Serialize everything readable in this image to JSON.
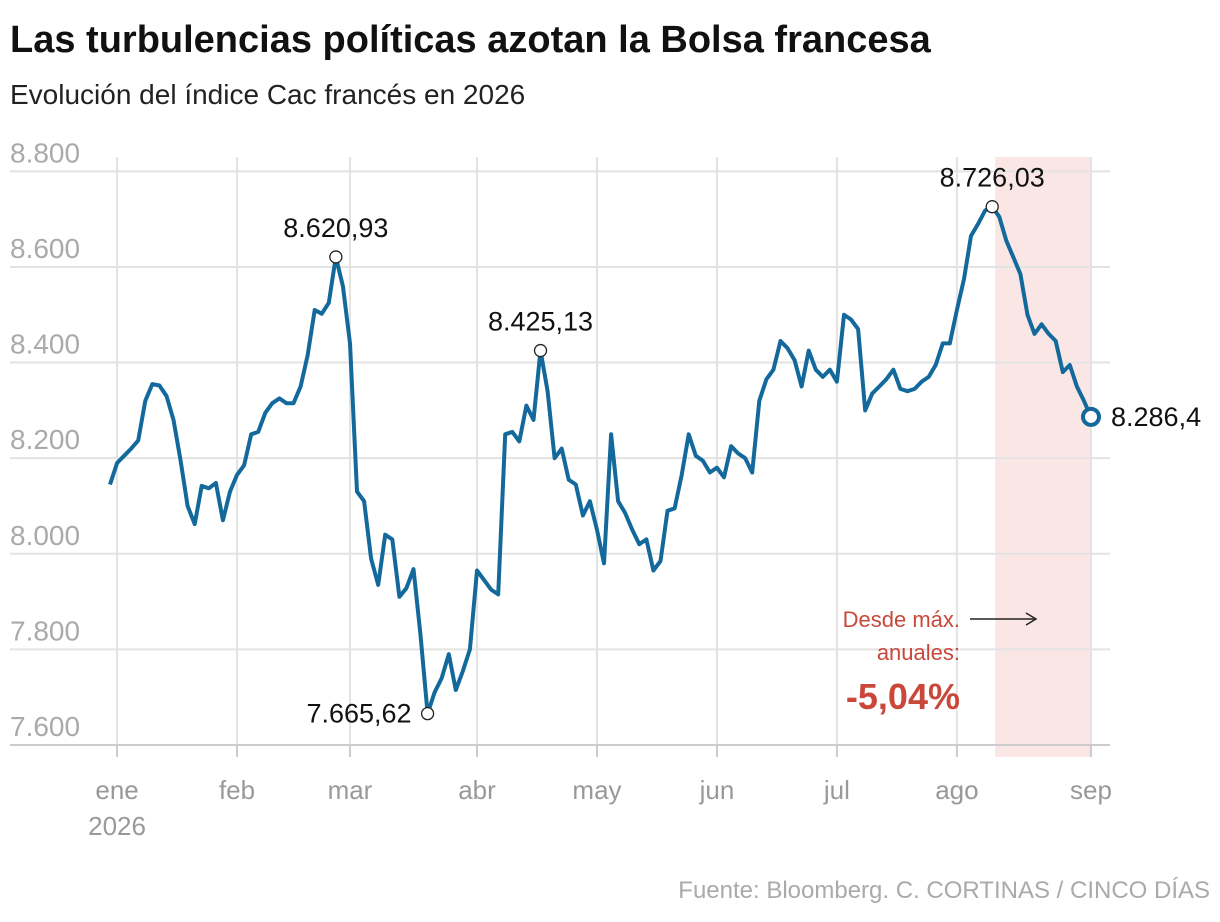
{
  "chart_data": {
    "type": "line",
    "title": "Las turbulencias políticas azotan la Bolsa francesa",
    "subtitle": "Evolución del índice Cac francés en 2026",
    "source": "Fuente: Bloomberg. C. CORTINAS / CINCO DÍAS",
    "year_label": "2026",
    "note": [
      "Desde máx.",
      "anuales:"
    ],
    "note_value": "-5,04%",
    "color": "#13699c",
    "shade_color": "#fae7e5",
    "grid": true,
    "ylim": [
      7600,
      8830
    ],
    "yticks": [
      {
        "value": 7600,
        "label": "7.600"
      },
      {
        "value": 7800,
        "label": "7.800"
      },
      {
        "value": 8000,
        "label": "8.000"
      },
      {
        "value": 8200,
        "label": "8.200"
      },
      {
        "value": 8400,
        "label": "8.400"
      },
      {
        "value": 8600,
        "label": "8.600"
      },
      {
        "value": 8800,
        "label": "8.800"
      }
    ],
    "categories": [
      null,
      "ene",
      null,
      null,
      null,
      null,
      null,
      null,
      null,
      null,
      null,
      null,
      null,
      null,
      null,
      null,
      null,
      null,
      "feb",
      null,
      null,
      null,
      null,
      null,
      null,
      null,
      null,
      null,
      null,
      null,
      null,
      null,
      null,
      null,
      "mar",
      null,
      null,
      null,
      null,
      null,
      null,
      null,
      null,
      null,
      null,
      null,
      null,
      null,
      null,
      null,
      null,
      null,
      "abr",
      null,
      null,
      null,
      null,
      null,
      null,
      null,
      null,
      null,
      null,
      null,
      null,
      null,
      null,
      null,
      null,
      "may",
      null,
      null,
      null,
      null,
      null,
      null,
      null,
      null,
      null,
      null,
      null,
      null,
      null,
      null,
      null,
      null,
      "jun",
      null,
      null,
      null,
      null,
      null,
      null,
      null,
      null,
      null,
      null,
      null,
      null,
      null,
      null,
      null,
      null,
      "jul",
      null,
      null,
      null,
      null,
      null,
      null,
      null,
      null,
      null,
      null,
      null,
      null,
      null,
      null,
      null,
      null,
      "ago",
      null,
      null,
      null,
      null,
      null,
      null,
      null,
      null,
      null,
      null,
      null,
      null,
      null,
      null,
      null,
      null,
      null,
      null,
      "sep"
    ],
    "values": [
      8145,
      8190,
      8205,
      8220,
      8237,
      8320,
      8355,
      8352,
      8330,
      8280,
      8195,
      8100,
      8062,
      8142,
      8137,
      8148,
      8070,
      8130,
      8165,
      8185,
      8250,
      8255,
      8295,
      8315,
      8325,
      8315,
      8315,
      8350,
      8415,
      8510,
      8502,
      8525,
      8620.93,
      8560,
      8440,
      8130,
      8110,
      7990,
      7935,
      8040,
      8030,
      7910,
      7928,
      7968,
      7830,
      7665.62,
      7710,
      7740,
      7790,
      7715,
      7755,
      7800,
      7965,
      7945,
      7925,
      7915,
      8250,
      8255,
      8235,
      8310,
      8280,
      8425.13,
      8340,
      8200,
      8220,
      8155,
      8145,
      8080,
      8110,
      8050,
      7980,
      8250,
      8110,
      8085,
      8050,
      8020,
      8030,
      7965,
      7985,
      8090,
      8095,
      8165,
      8250,
      8205,
      8195,
      8170,
      8180,
      8160,
      8225,
      8210,
      8200,
      8170,
      8320,
      8365,
      8385,
      8445,
      8430,
      8405,
      8350,
      8425,
      8385,
      8370,
      8385,
      8360,
      8500,
      8490,
      8470,
      8300,
      8335,
      8350,
      8365,
      8385,
      8345,
      8340,
      8345,
      8360,
      8370,
      8395,
      8440,
      8440,
      8510,
      8575,
      8665,
      8690,
      8718,
      8726.03,
      8705,
      8655,
      8620,
      8585,
      8500,
      8460,
      8480,
      8460,
      8445,
      8380,
      8395,
      8350,
      8320,
      8286.4
    ],
    "value_labels": [
      null,
      null,
      null,
      null,
      null,
      null,
      null,
      null,
      null,
      null,
      null,
      null,
      null,
      null,
      null,
      null,
      null,
      null,
      null,
      null,
      null,
      null,
      null,
      null,
      null,
      null,
      null,
      null,
      null,
      null,
      null,
      null,
      "8.620,93",
      null,
      null,
      null,
      null,
      null,
      null,
      null,
      null,
      null,
      null,
      null,
      null,
      "7.665,62",
      null,
      null,
      null,
      null,
      null,
      null,
      null,
      null,
      null,
      null,
      null,
      null,
      null,
      null,
      null,
      "8.425,13",
      null,
      null,
      null,
      null,
      null,
      null,
      null,
      null,
      null,
      null,
      null,
      null,
      null,
      null,
      null,
      null,
      null,
      null,
      null,
      null,
      null,
      null,
      null,
      null,
      null,
      null,
      null,
      null,
      null,
      null,
      null,
      null,
      null,
      null,
      null,
      null,
      null,
      null,
      null,
      null,
      null,
      null,
      null,
      null,
      null,
      null,
      null,
      null,
      null,
      null,
      null,
      null,
      null,
      null,
      null,
      null,
      null,
      null,
      null,
      null,
      null,
      null,
      null,
      "8.726,03",
      null,
      null,
      null,
      null,
      null,
      null,
      null,
      null,
      null,
      null,
      null,
      null,
      null,
      "8.286,4"
    ]
  }
}
